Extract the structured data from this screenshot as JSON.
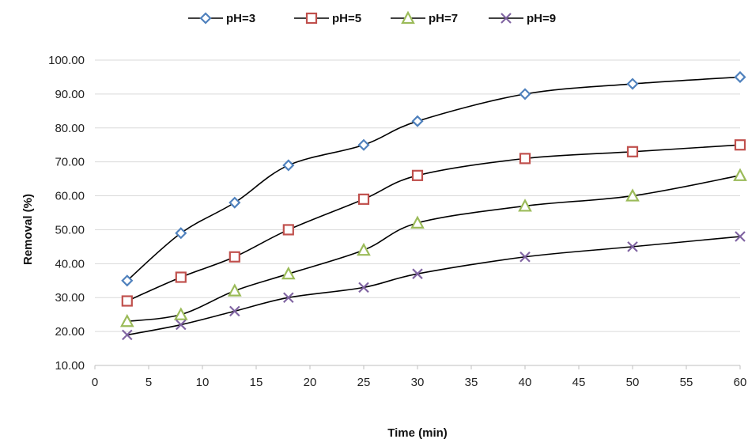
{
  "chart_data": {
    "type": "line",
    "title": "",
    "xlabel": "Time (min)",
    "ylabel": "Removal (%)",
    "xlim": [
      0,
      60
    ],
    "ylim": [
      10,
      100
    ],
    "x_ticks": [
      "0",
      "5",
      "10",
      "15",
      "20",
      "25",
      "30",
      "35",
      "40",
      "45",
      "50",
      "55",
      "60"
    ],
    "y_ticks": [
      "10.00",
      "20.00",
      "30.00",
      "40.00",
      "50.00",
      "60.00",
      "70.00",
      "80.00",
      "90.00",
      "100.00"
    ],
    "grid": "horizontal",
    "legend_position": "top",
    "line_color": "#000000",
    "x": [
      3,
      8,
      13,
      18,
      25,
      30,
      40,
      50,
      60
    ],
    "series": [
      {
        "name": "pH=3",
        "marker": "diamond",
        "color": "#4f81bd",
        "values": [
          35,
          49,
          58,
          69,
          75,
          82,
          90,
          93,
          95
        ]
      },
      {
        "name": "pH=5",
        "marker": "square",
        "color": "#c0504d",
        "values": [
          29,
          36,
          42,
          50,
          59,
          66,
          71,
          73,
          75
        ]
      },
      {
        "name": "pH=7",
        "marker": "triangle",
        "color": "#9bbb59",
        "values": [
          23,
          25,
          32,
          37,
          44,
          52,
          57,
          60,
          66
        ]
      },
      {
        "name": "pH=9",
        "marker": "x",
        "color": "#8064a2",
        "values": [
          19,
          22,
          26,
          30,
          33,
          37,
          42,
          45,
          48
        ]
      }
    ]
  }
}
